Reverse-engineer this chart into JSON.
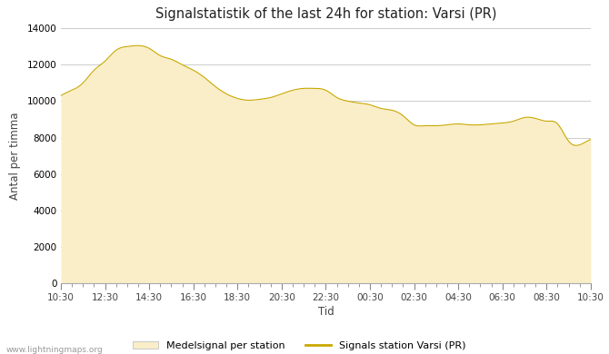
{
  "title": "Signalstatistik of the last 24h for station: Varsi (PR)",
  "xlabel": "Tid",
  "ylabel": "Antal per timma",
  "watermark": "www.lightningmaps.org",
  "legend_fill_label": "Medelsignal per station",
  "legend_line_label": "Signals station Varsi (PR)",
  "fill_color": "#faeec8",
  "line_color": "#c8a800",
  "background_color": "#ffffff",
  "ylim": [
    0,
    14000
  ],
  "yticks": [
    0,
    2000,
    4000,
    6000,
    8000,
    10000,
    12000,
    14000
  ],
  "xtick_labels": [
    "10:30",
    "12:30",
    "14:30",
    "16:30",
    "18:30",
    "20:30",
    "22:30",
    "00:30",
    "02:30",
    "04:30",
    "06:30",
    "08:30",
    "10:30"
  ],
  "ctrl_x": [
    0,
    0.5,
    1.0,
    1.5,
    2.0,
    2.5,
    3.0,
    3.5,
    4.0,
    4.5,
    5.0,
    5.5,
    6.0,
    6.5,
    7.0,
    7.5,
    8.0,
    8.5,
    9.0,
    9.5,
    10.0,
    10.5,
    11.0,
    11.5,
    12.0,
    12.5,
    13.0,
    13.5,
    14.0,
    14.5,
    15.0,
    15.5,
    16.0,
    16.5,
    17.0,
    17.5,
    18.0,
    18.5,
    19.0,
    19.5,
    20.0,
    20.5,
    21.0,
    21.5,
    22.0,
    22.5,
    23.0,
    23.5,
    24.0
  ],
  "ctrl_y": [
    10300,
    10600,
    11000,
    11700,
    12200,
    12800,
    13000,
    13050,
    12900,
    12500,
    12300,
    12000,
    11700,
    11300,
    10800,
    10400,
    10150,
    10050,
    10100,
    10200,
    10400,
    10600,
    10700,
    10700,
    10600,
    10200,
    10000,
    9900,
    9800,
    9600,
    9500,
    9200,
    8700,
    8650,
    8650,
    8700,
    8750,
    8700,
    8700,
    8750,
    8800,
    8900,
    9100,
    9050,
    8900,
    8750,
    7800,
    7600,
    7900
  ]
}
